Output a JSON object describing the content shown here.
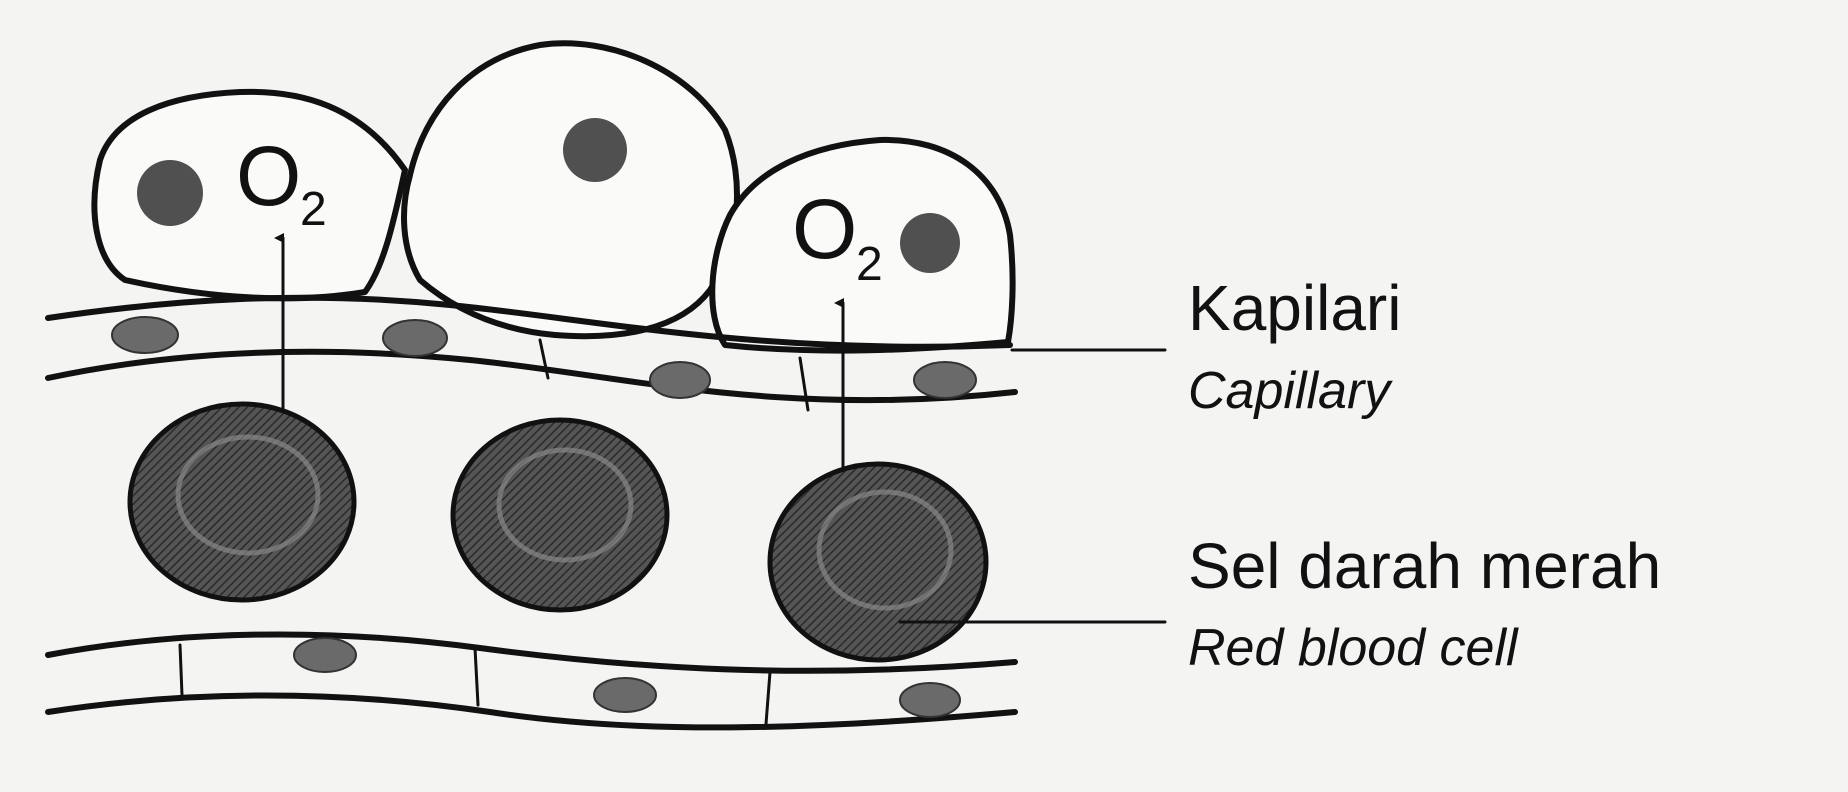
{
  "labels": {
    "capillary_ms": "Kapilari",
    "capillary_en": "Capillary",
    "rbc_ms": "Sel darah merah",
    "rbc_en": "Red blood cell"
  },
  "oxygen": {
    "symbol": "O",
    "subscript": "2"
  },
  "colors": {
    "ink": "#111111",
    "background": "#f4f4f2",
    "red_blood_cell_fill": "#4a4a4a",
    "nucleus": "#505050"
  }
}
